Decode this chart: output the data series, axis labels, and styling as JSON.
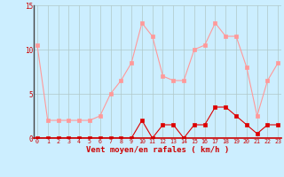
{
  "hours": [
    0,
    1,
    2,
    3,
    4,
    5,
    6,
    7,
    8,
    9,
    10,
    11,
    12,
    13,
    14,
    15,
    16,
    17,
    18,
    19,
    20,
    21,
    22,
    23
  ],
  "rafales": [
    10.5,
    2.0,
    2.0,
    2.0,
    2.0,
    2.0,
    2.5,
    5.0,
    6.5,
    8.5,
    13.0,
    11.5,
    7.0,
    6.5,
    6.5,
    10.0,
    10.5,
    13.0,
    11.5,
    11.5,
    8.0,
    2.5,
    6.5,
    8.5
  ],
  "moyen": [
    0,
    0,
    0,
    0,
    0,
    0,
    0,
    0,
    0,
    0,
    2.0,
    0,
    1.5,
    1.5,
    0,
    1.5,
    1.5,
    3.5,
    3.5,
    2.5,
    1.5,
    0.5,
    1.5,
    1.5
  ],
  "xlabel": "Vent moyen/en rafales ( km/h )",
  "ylim": [
    0,
    15
  ],
  "yticks": [
    0,
    5,
    10,
    15
  ],
  "xticks": [
    0,
    1,
    2,
    3,
    4,
    5,
    6,
    7,
    8,
    9,
    10,
    11,
    12,
    13,
    14,
    15,
    16,
    17,
    18,
    19,
    20,
    21,
    22,
    23
  ],
  "bg_color": "#cceeff",
  "grid_color": "#b0c8c8",
  "line_color_rafales": "#ff9999",
  "line_color_moyen": "#dd0000",
  "marker_rafales": "#ff9999",
  "marker_moyen": "#dd0000"
}
